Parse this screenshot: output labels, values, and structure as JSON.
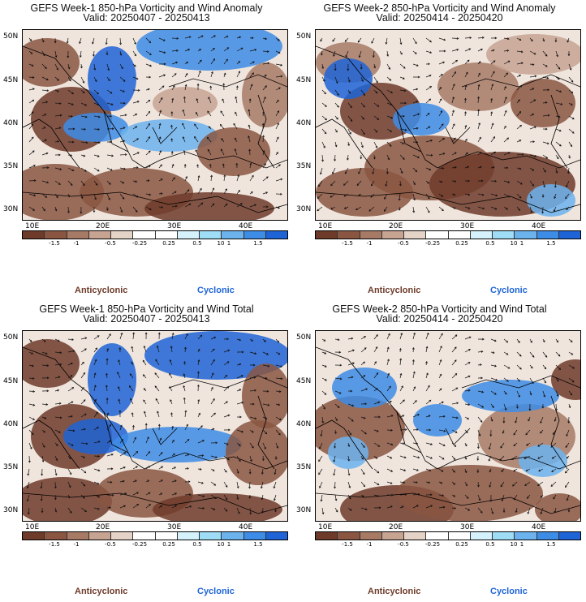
{
  "panels": [
    {
      "title": "GEFS Week-1 850-hPa Vorticity and Wind Anomaly",
      "valid": "Valid: 20250407 - 20250413"
    },
    {
      "title": "GEFS Week-2 850-hPa Vorticity and Wind Anomaly",
      "valid": "Valid: 20250414 - 20250420"
    },
    {
      "title": "GEFS Week-1 850-hPa Vorticity and Wind Total",
      "valid": "Valid: 20250407 - 20250413"
    },
    {
      "title": "GEFS Week-2 850-hPa Vorticity and Wind Total",
      "valid": "Valid: 20250414 - 20250420"
    }
  ],
  "lat_labels": [
    "50N",
    "45N",
    "40N",
    "35N",
    "30N"
  ],
  "lon_labels": [
    "10E",
    "20E",
    "30E",
    "40E"
  ],
  "colorbar": {
    "ticks": [
      "-1.5",
      "-1",
      "-0.5",
      "-0.25",
      "0.25",
      "0.5",
      "1",
      "1.5"
    ],
    "unit": "10",
    "colors": [
      "#6e3b2a",
      "#8a5642",
      "#a77a66",
      "#c7a392",
      "#e6d3c8",
      "#ffffff",
      "#ffffff",
      "#d5f1fb",
      "#9fdcf5",
      "#6cb3ee",
      "#3d8ce6",
      "#1e64d6"
    ]
  },
  "legend": {
    "anticyclonic": "Anticyclonic",
    "cyclonic": "Cyclonic"
  },
  "colors": {
    "anticyclonic": "#6e3b2a",
    "cyclonic": "#1e64d6"
  }
}
